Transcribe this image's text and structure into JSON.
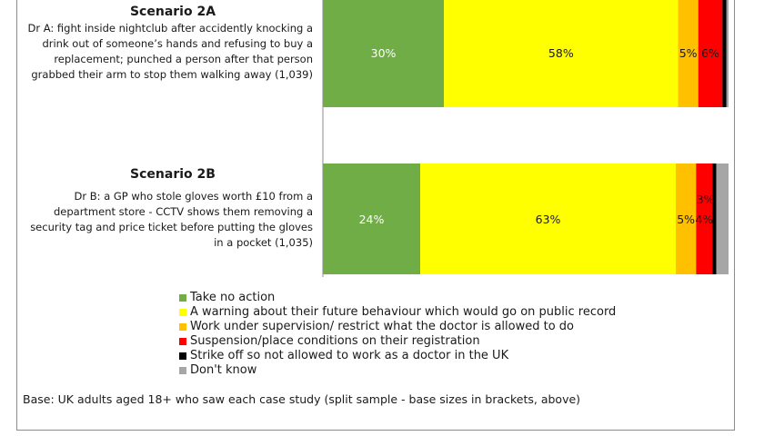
{
  "chart_data": {
    "type": "stacked-bar-horizontal",
    "series_order": [
      "Take no action",
      "A warning about their future behaviour which would go on public record",
      "Work under supervision/ restrict what the doctor is allowed to do",
      "Suspension/place conditions on their registration",
      "Strike off so not allowed to work as a doctor in the UK",
      "Don't know"
    ],
    "colors": [
      "#70ad47",
      "#ffff00",
      "#ffc000",
      "#ff0000",
      "#000000",
      "#a6a6a6"
    ],
    "bars": [
      {
        "title": "Scenario 2A",
        "description": "Dr A: fight inside nightclub after accidently knocking a drink out of someone’s hands and refusing to buy a replacement; punched a person after that person grabbed their arm to stop them walking away (1,039)",
        "values": [
          30,
          58,
          5,
          6,
          1,
          0.5
        ],
        "labels": [
          "30%",
          "58%",
          "5%",
          "6%",
          "",
          ""
        ]
      },
      {
        "title": "Scenario 2B",
        "description": "Dr B: a GP who stole gloves worth £10 from a department store - CCTV shows them removing a security tag and price ticket before putting the gloves in a pocket (1,035)",
        "values": [
          24,
          63,
          5,
          4,
          1,
          3
        ],
        "labels": [
          "24%",
          "63%",
          "5%",
          "4%",
          "",
          "3%"
        ]
      }
    ],
    "legend": [
      "Take no action",
      "A warning about their future behaviour which would go on public record",
      "Work under supervision/ restrict what the doctor is allowed to do",
      "Suspension/place conditions on their registration",
      "Strike off so not allowed to work as a doctor in the UK",
      "Don't know"
    ],
    "base_note": "Base: UK adults aged 18+ who saw each case study (split sample - base sizes in brackets, above)"
  }
}
